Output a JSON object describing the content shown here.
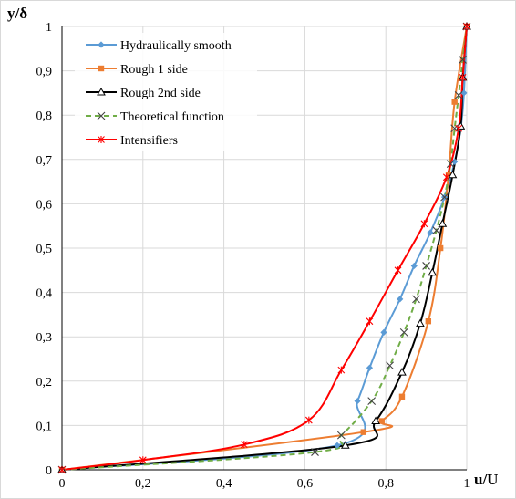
{
  "chart_data": {
    "type": "line",
    "xlabel": "u/U",
    "ylabel": "y/δ",
    "xlim": [
      0,
      1
    ],
    "ylim": [
      0,
      1
    ],
    "x_ticks": [
      "0",
      "0,2",
      "0,4",
      "0,6",
      "0,8",
      "1"
    ],
    "y_ticks": [
      "0",
      "0,1",
      "0,2",
      "0,3",
      "0,4",
      "0,5",
      "0,6",
      "0,7",
      "0,8",
      "0,9",
      "1"
    ],
    "x_tick_values": [
      0,
      0.2,
      0.4,
      0.6,
      0.8,
      1
    ],
    "y_tick_values": [
      0,
      0.1,
      0.2,
      0.3,
      0.4,
      0.5,
      0.6,
      0.7,
      0.8,
      0.9,
      1
    ],
    "grid": true,
    "legend_position": "top-left",
    "series": [
      {
        "name": "Hydraulically smooth",
        "color": "#5b9bd5",
        "marker": "diamond",
        "dash": "solid",
        "points": [
          [
            0,
            0
          ],
          [
            0.68,
            0.055
          ],
          [
            0.73,
            0.155
          ],
          [
            0.76,
            0.23
          ],
          [
            0.795,
            0.31
          ],
          [
            0.835,
            0.385
          ],
          [
            0.87,
            0.46
          ],
          [
            0.91,
            0.535
          ],
          [
            0.945,
            0.615
          ],
          [
            0.97,
            0.695
          ],
          [
            0.985,
            0.77
          ],
          [
            0.993,
            0.85
          ],
          [
            1.0,
            1.0
          ]
        ]
      },
      {
        "name": "Rough 1 side",
        "color": "#ed7d31",
        "marker": "square",
        "dash": "solid",
        "points": [
          [
            0,
            0
          ],
          [
            0.745,
            0.085
          ],
          [
            0.79,
            0.11
          ],
          [
            0.84,
            0.165
          ],
          [
            0.905,
            0.335
          ],
          [
            0.935,
            0.5
          ],
          [
            0.955,
            0.665
          ],
          [
            0.97,
            0.83
          ],
          [
            1.0,
            1.0
          ]
        ]
      },
      {
        "name": "Rough 2nd side",
        "color": "#000000",
        "marker": "triangle",
        "dash": "solid",
        "points": [
          [
            0,
            0
          ],
          [
            0.7,
            0.055
          ],
          [
            0.775,
            0.11
          ],
          [
            0.84,
            0.22
          ],
          [
            0.885,
            0.33
          ],
          [
            0.915,
            0.445
          ],
          [
            0.94,
            0.555
          ],
          [
            0.965,
            0.665
          ],
          [
            0.985,
            0.775
          ],
          [
            0.99,
            0.885
          ],
          [
            1.0,
            1.0
          ]
        ]
      },
      {
        "name": "Theoretical function",
        "color": "#70ad47",
        "marker": "x",
        "dash": "dashed",
        "points": [
          [
            0,
            0
          ],
          [
            0.625,
            0.04
          ],
          [
            0.69,
            0.078
          ],
          [
            0.765,
            0.155
          ],
          [
            0.81,
            0.235
          ],
          [
            0.845,
            0.31
          ],
          [
            0.875,
            0.385
          ],
          [
            0.9,
            0.46
          ],
          [
            0.925,
            0.54
          ],
          [
            0.945,
            0.615
          ],
          [
            0.96,
            0.69
          ],
          [
            0.97,
            0.77
          ],
          [
            0.98,
            0.845
          ],
          [
            0.99,
            0.925
          ],
          [
            1.0,
            1.0
          ]
        ]
      },
      {
        "name": "Intensifiers",
        "color": "#ff0000",
        "marker": "star",
        "dash": "solid",
        "points": [
          [
            0,
            0
          ],
          [
            0.2,
            0.022
          ],
          [
            0.45,
            0.057
          ],
          [
            0.61,
            0.112
          ],
          [
            0.69,
            0.225
          ],
          [
            0.76,
            0.335
          ],
          [
            0.83,
            0.45
          ],
          [
            0.895,
            0.555
          ],
          [
            0.95,
            0.66
          ],
          [
            0.98,
            0.77
          ],
          [
            0.99,
            0.885
          ],
          [
            1.0,
            1.0
          ]
        ]
      }
    ]
  }
}
